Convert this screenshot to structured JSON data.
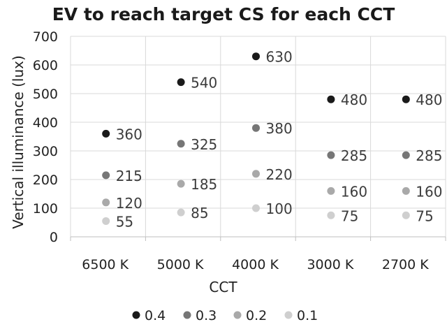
{
  "chart_data": {
    "type": "scatter",
    "title": "EV to reach target CS for each CCT",
    "xlabel": "CCT",
    "ylabel": "Vertical illuminance (lux)",
    "categories": [
      "6500 K",
      "5000 K",
      "4000 K",
      "3000 K",
      "2700 K"
    ],
    "ylim": [
      0,
      700
    ],
    "yticks": [
      0,
      100,
      200,
      300,
      400,
      500,
      600,
      700
    ],
    "grid": "both",
    "legend_position": "bottom",
    "series": [
      {
        "name": "0.4",
        "color": "#1a1a1a",
        "values": [
          360,
          540,
          630,
          480,
          480
        ]
      },
      {
        "name": "0.3",
        "color": "#767676",
        "values": [
          215,
          325,
          380,
          285,
          285
        ]
      },
      {
        "name": "0.2",
        "color": "#a9a9a9",
        "values": [
          120,
          185,
          220,
          160,
          160
        ]
      },
      {
        "name": "0.1",
        "color": "#cfcfcf",
        "values": [
          55,
          85,
          100,
          75,
          75
        ]
      }
    ]
  }
}
